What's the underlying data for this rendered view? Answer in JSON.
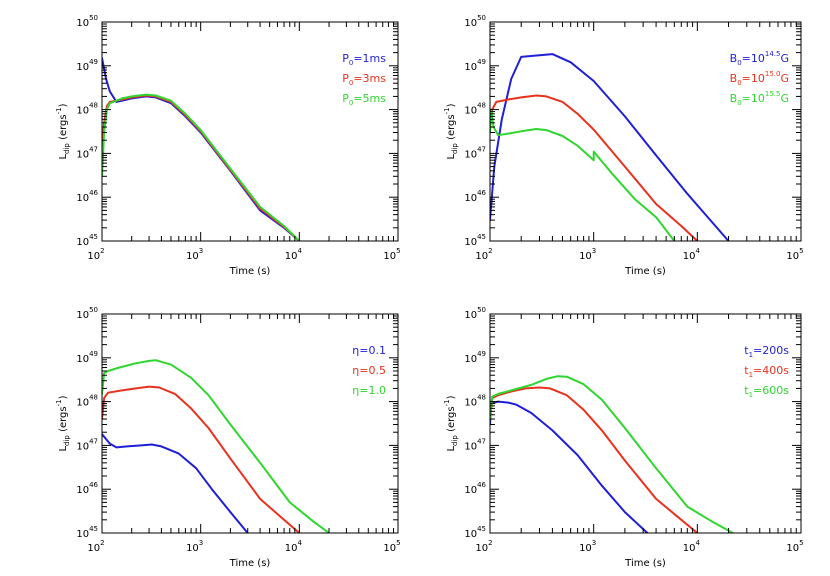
{
  "colors": {
    "blue": "#1f1fd6",
    "red": "#e8321e",
    "green": "#2fd62f",
    "axis": "#000000"
  },
  "chart_data": [
    {
      "type": "line",
      "title": "",
      "xlabel": "Time (s)",
      "ylabel": {
        "base": "L",
        "sub": "dip",
        "unit_open": " (ergs",
        "unit_sup": "-1",
        "unit_close": ")"
      },
      "xscale": "log",
      "yscale": "log",
      "xlim": [
        100,
        100000
      ],
      "ylim": [
        1e+45,
        1e+50
      ],
      "xticks": [
        {
          "base": "10",
          "exp": "2"
        },
        {
          "base": "10",
          "exp": "3"
        },
        {
          "base": "10",
          "exp": "4"
        },
        {
          "base": "10",
          "exp": "5"
        }
      ],
      "yticks": [
        {
          "base": "10",
          "exp": "45"
        },
        {
          "base": "10",
          "exp": "46"
        },
        {
          "base": "10",
          "exp": "47"
        },
        {
          "base": "10",
          "exp": "48"
        },
        {
          "base": "10",
          "exp": "49"
        },
        {
          "base": "10",
          "exp": "50"
        }
      ],
      "legend_position": "top-right",
      "series": [
        {
          "name": "P0=1ms",
          "label": {
            "pre": "P",
            "sub": "0",
            "sup": "",
            "post": "=1ms"
          },
          "color": "#1f1fd6",
          "points": [
            [
              100,
              1.5e+49
            ],
            [
              110,
              5e+48
            ],
            [
              120,
              2.6e+48
            ],
            [
              140,
              1.5e+48
            ],
            [
              160,
              1.6e+48
            ],
            [
              200,
              1.8e+48
            ],
            [
              280,
              2e+48
            ],
            [
              350,
              1.9e+48
            ],
            [
              500,
              1.4e+48
            ],
            [
              700,
              7e+47
            ],
            [
              1000,
              3e+47
            ],
            [
              2000,
              4e+46
            ],
            [
              4000,
              5e+45
            ],
            [
              7000,
              2e+45
            ],
            [
              10000,
              1e+45
            ]
          ]
        },
        {
          "name": "P0=3ms",
          "label": {
            "pre": "P",
            "sub": "0",
            "sup": "",
            "post": "=3ms"
          },
          "color": "#e8321e",
          "points": [
            [
              100,
              1.3e+47
            ],
            [
              105,
              5e+47
            ],
            [
              112,
              1.2e+48
            ],
            [
              120,
              1.5e+48
            ],
            [
              160,
              1.7e+48
            ],
            [
              200,
              1.9e+48
            ],
            [
              280,
              2.1e+48
            ],
            [
              350,
              2e+48
            ],
            [
              500,
              1.5e+48
            ],
            [
              700,
              7.5e+47
            ],
            [
              1000,
              3.2e+47
            ],
            [
              2000,
              4.2e+46
            ],
            [
              4000,
              5.5e+45
            ],
            [
              7000,
              2.1e+45
            ],
            [
              10000,
              1e+45
            ]
          ]
        },
        {
          "name": "P0=5ms",
          "label": {
            "pre": "P",
            "sub": "0",
            "sup": "",
            "post": "=5ms"
          },
          "color": "#2fd62f",
          "points": [
            [
              100,
              3e+46
            ],
            [
              105,
              3e+47
            ],
            [
              112,
              1e+48
            ],
            [
              120,
              1.4e+48
            ],
            [
              160,
              1.8e+48
            ],
            [
              200,
              2e+48
            ],
            [
              280,
              2.2e+48
            ],
            [
              350,
              2.1e+48
            ],
            [
              500,
              1.6e+48
            ],
            [
              700,
              8e+47
            ],
            [
              1000,
              3.4e+47
            ],
            [
              2000,
              4.5e+46
            ],
            [
              4000,
              6e+45
            ],
            [
              7000,
              2.2e+45
            ],
            [
              10000,
              1e+45
            ]
          ]
        }
      ]
    },
    {
      "type": "line",
      "title": "",
      "xlabel": "Time (s)",
      "ylabel": {
        "base": "L",
        "sub": "dip",
        "unit_open": " (ergs",
        "unit_sup": "-1",
        "unit_close": ")"
      },
      "xscale": "log",
      "yscale": "log",
      "xlim": [
        100,
        100000
      ],
      "ylim": [
        1e+45,
        1e+50
      ],
      "xticks": [
        {
          "base": "10",
          "exp": "2"
        },
        {
          "base": "10",
          "exp": "3"
        },
        {
          "base": "10",
          "exp": "4"
        },
        {
          "base": "10",
          "exp": "5"
        }
      ],
      "yticks": [
        {
          "base": "10",
          "exp": "45"
        },
        {
          "base": "10",
          "exp": "46"
        },
        {
          "base": "10",
          "exp": "47"
        },
        {
          "base": "10",
          "exp": "48"
        },
        {
          "base": "10",
          "exp": "49"
        },
        {
          "base": "10",
          "exp": "50"
        }
      ],
      "legend_position": "top-right",
      "series": [
        {
          "name": "B0=10^14.5G",
          "label": {
            "pre": "B",
            "sub": "0",
            "sup": "14.5",
            "post": "G",
            "mid": "=10"
          },
          "color": "#1f1fd6",
          "points": [
            [
              100,
              3e+45
            ],
            [
              110,
              5e+46
            ],
            [
              130,
              6e+47
            ],
            [
              160,
              5e+48
            ],
            [
              200,
              1.6e+49
            ],
            [
              300,
              1.75e+49
            ],
            [
              400,
              1.85e+49
            ],
            [
              600,
              1.2e+49
            ],
            [
              1000,
              4.5e+48
            ],
            [
              2000,
              7e+47
            ],
            [
              4000,
              9e+46
            ],
            [
              8000,
              1.2e+46
            ],
            [
              12000,
              4e+45
            ],
            [
              20000,
              1e+45
            ]
          ]
        },
        {
          "name": "B0=10^15.0G",
          "label": {
            "pre": "B",
            "sub": "0",
            "sup": "15.0",
            "post": "G",
            "mid": "=10"
          },
          "color": "#e8321e",
          "points": [
            [
              100,
              4e+47
            ],
            [
              105,
              1e+48
            ],
            [
              115,
              1.5e+48
            ],
            [
              150,
              1.7e+48
            ],
            [
              200,
              1.9e+48
            ],
            [
              280,
              2.1e+48
            ],
            [
              350,
              2e+48
            ],
            [
              500,
              1.5e+48
            ],
            [
              700,
              8e+47
            ],
            [
              1000,
              3.5e+47
            ],
            [
              2000,
              5e+46
            ],
            [
              4000,
              7e+45
            ],
            [
              7000,
              2.2e+45
            ],
            [
              10000,
              1e+45
            ]
          ]
        },
        {
          "name": "B0=10^15.5G",
          "label": {
            "pre": "B",
            "sub": "0",
            "sup": "15.5",
            "post": "G",
            "mid": "=10"
          },
          "color": "#2fd62f",
          "points": [
            [
              100,
              3e+47
            ],
            [
              103,
              1e+48
            ],
            [
              108,
              4e+47
            ],
            [
              120,
              2.6e+47
            ],
            [
              160,
              2.9e+47
            ],
            [
              200,
              3.2e+47
            ],
            [
              280,
              3.6e+47
            ],
            [
              350,
              3.4e+47
            ],
            [
              500,
              2.5e+47
            ],
            [
              700,
              1.5e+47
            ],
            [
              1000,
              7e+46
            ],
            [
              1000,
              1.1e+47
            ],
            [
              1500,
              3.5e+46
            ],
            [
              2500,
              9e+45
            ],
            [
              4000,
              3.5e+45
            ],
            [
              6000,
              1e+45
            ]
          ]
        }
      ]
    },
    {
      "type": "line",
      "title": "",
      "xlabel": "Time (s)",
      "ylabel": {
        "base": "L",
        "sub": "dip",
        "unit_open": " (ergs",
        "unit_sup": "-1",
        "unit_close": ")"
      },
      "xscale": "log",
      "yscale": "log",
      "xlim": [
        100,
        100000
      ],
      "ylim": [
        1e+45,
        1e+50
      ],
      "xticks": [
        {
          "base": "10",
          "exp": "2"
        },
        {
          "base": "10",
          "exp": "3"
        },
        {
          "base": "10",
          "exp": "4"
        },
        {
          "base": "10",
          "exp": "5"
        }
      ],
      "yticks": [
        {
          "base": "10",
          "exp": "45"
        },
        {
          "base": "10",
          "exp": "46"
        },
        {
          "base": "10",
          "exp": "47"
        },
        {
          "base": "10",
          "exp": "48"
        },
        {
          "base": "10",
          "exp": "49"
        },
        {
          "base": "10",
          "exp": "50"
        }
      ],
      "legend_position": "top-right",
      "series": [
        {
          "name": "η=0.1",
          "label": {
            "pre": "η",
            "sub": "",
            "sup": "",
            "post": "=0.1"
          },
          "color": "#1f1fd6",
          "points": [
            [
              100,
              1.8e+47
            ],
            [
              120,
              1.1e+47
            ],
            [
              140,
              9e+46
            ],
            [
              180,
              9.5e+46
            ],
            [
              250,
              1e+47
            ],
            [
              320,
              1.05e+47
            ],
            [
              400,
              9.5e+46
            ],
            [
              600,
              6.5e+46
            ],
            [
              900,
              3e+46
            ],
            [
              1300,
              1e+46
            ],
            [
              2000,
              3e+45
            ],
            [
              3000,
              1e+45
            ]
          ]
        },
        {
          "name": "η=0.5",
          "label": {
            "pre": "η",
            "sub": "",
            "sup": "",
            "post": "=0.5"
          },
          "color": "#e8321e",
          "points": [
            [
              100,
              4e+47
            ],
            [
              105,
              1.2e+48
            ],
            [
              115,
              1.6e+48
            ],
            [
              160,
              1.8e+48
            ],
            [
              220,
              2e+48
            ],
            [
              300,
              2.2e+48
            ],
            [
              380,
              2.1e+48
            ],
            [
              550,
              1.5e+48
            ],
            [
              800,
              7e+47
            ],
            [
              1200,
              2.5e+47
            ],
            [
              2000,
              5e+46
            ],
            [
              4000,
              6e+45
            ],
            [
              7000,
              2e+45
            ],
            [
              10000,
              1e+45
            ]
          ]
        },
        {
          "name": "η=1.0",
          "label": {
            "pre": "η",
            "sub": "",
            "sup": "",
            "post": "=1.0"
          },
          "color": "#2fd62f",
          "points": [
            [
              100,
              1.5e+48
            ],
            [
              105,
              4.5e+48
            ],
            [
              115,
              5e+48
            ],
            [
              150,
              6e+48
            ],
            [
              220,
              7.5e+48
            ],
            [
              300,
              8.5e+48
            ],
            [
              350,
              8.8e+48
            ],
            [
              500,
              7e+48
            ],
            [
              800,
              3.5e+48
            ],
            [
              1200,
              1.4e+48
            ],
            [
              2000,
              3e+47
            ],
            [
              4000,
              4e+46
            ],
            [
              8000,
              5e+45
            ],
            [
              14000,
              1.8e+45
            ],
            [
              20000,
              1e+45
            ]
          ]
        }
      ]
    },
    {
      "type": "line",
      "title": "",
      "xlabel": "Time (s)",
      "ylabel": {
        "base": "L",
        "sub": "dip",
        "unit_open": " (ergs",
        "unit_sup": "-1",
        "unit_close": ")"
      },
      "xscale": "log",
      "yscale": "log",
      "xlim": [
        100,
        100000
      ],
      "ylim": [
        1e+45,
        1e+50
      ],
      "xticks": [
        {
          "base": "10",
          "exp": "2"
        },
        {
          "base": "10",
          "exp": "3"
        },
        {
          "base": "10",
          "exp": "4"
        },
        {
          "base": "10",
          "exp": "5"
        }
      ],
      "yticks": [
        {
          "base": "10",
          "exp": "45"
        },
        {
          "base": "10",
          "exp": "46"
        },
        {
          "base": "10",
          "exp": "47"
        },
        {
          "base": "10",
          "exp": "48"
        },
        {
          "base": "10",
          "exp": "49"
        },
        {
          "base": "10",
          "exp": "50"
        }
      ],
      "legend_position": "top-right",
      "series": [
        {
          "name": "t1=200s",
          "label": {
            "pre": "t",
            "sub": "1",
            "sup": "",
            "post": "=200s"
          },
          "color": "#1f1fd6",
          "points": [
            [
              100,
              3e+47
            ],
            [
              103,
              9e+47
            ],
            [
              120,
              1e+48
            ],
            [
              150,
              9.5e+47
            ],
            [
              180,
              8.5e+47
            ],
            [
              250,
              5.5e+47
            ],
            [
              400,
              2.2e+47
            ],
            [
              700,
              6e+46
            ],
            [
              1200,
              1.2e+46
            ],
            [
              2000,
              3e+45
            ],
            [
              3300,
              1e+45
            ]
          ]
        },
        {
          "name": "t1=400s",
          "label": {
            "pre": "t",
            "sub": "1",
            "sup": "",
            "post": "=400s"
          },
          "color": "#e8321e",
          "points": [
            [
              100,
              4e+47
            ],
            [
              105,
              1.2e+48
            ],
            [
              120,
              1.4e+48
            ],
            [
              160,
              1.7e+48
            ],
            [
              220,
              2e+48
            ],
            [
              300,
              2.1e+48
            ],
            [
              380,
              2e+48
            ],
            [
              550,
              1.4e+48
            ],
            [
              800,
              6.5e+47
            ],
            [
              1200,
              2.2e+47
            ],
            [
              2000,
              4.5e+46
            ],
            [
              4000,
              6e+45
            ],
            [
              7000,
              2e+45
            ],
            [
              10000,
              1e+45
            ]
          ]
        },
        {
          "name": "t1=600s",
          "label": {
            "pre": "t",
            "sub": "1",
            "sup": "",
            "post": "=600s"
          },
          "color": "#2fd62f",
          "points": [
            [
              100,
              4e+47
            ],
            [
              105,
              1.3e+48
            ],
            [
              120,
              1.5e+48
            ],
            [
              160,
              1.8e+48
            ],
            [
              250,
              2.4e+48
            ],
            [
              350,
              3.3e+48
            ],
            [
              450,
              3.8e+48
            ],
            [
              550,
              3.7e+48
            ],
            [
              800,
              2.5e+48
            ],
            [
              1200,
              1.1e+48
            ],
            [
              2000,
              2.5e+47
            ],
            [
              4000,
              3e+46
            ],
            [
              8000,
              4e+45
            ],
            [
              14000,
              1.8e+45
            ],
            [
              22000,
              1e+45
            ]
          ]
        }
      ]
    }
  ]
}
